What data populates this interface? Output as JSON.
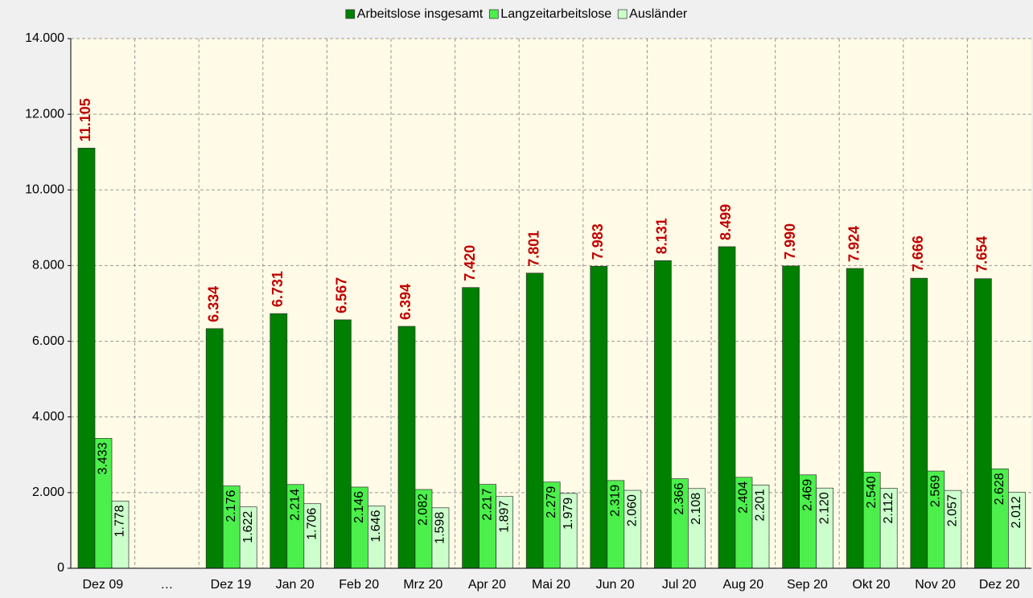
{
  "chart_data": {
    "type": "bar",
    "categories": [
      "Dez 09",
      "…",
      "Dez 19",
      "Jan 20",
      "Feb 20",
      "Mrz 20",
      "Apr 20",
      "Mai 20",
      "Jun 20",
      "Jul 20",
      "Aug 20",
      "Sep 20",
      "Okt 20",
      "Nov 20",
      "Dez 20"
    ],
    "series": [
      {
        "name": "Arbeitslose insgesamt",
        "color": "#008000",
        "values": [
          11105,
          null,
          6334,
          6731,
          6567,
          6394,
          7420,
          7801,
          7983,
          8131,
          8499,
          7990,
          7924,
          7666,
          7654
        ],
        "value_labels": [
          "11.105",
          null,
          "6.334",
          "6.731",
          "6.567",
          "6.394",
          "7.420",
          "7.801",
          "7.983",
          "8.131",
          "8.499",
          "7.990",
          "7.924",
          "7.666",
          "7.654"
        ]
      },
      {
        "name": "Langzeitarbeitslose",
        "color": "#4cef4c",
        "values": [
          3433,
          null,
          2176,
          2214,
          2146,
          2082,
          2217,
          2279,
          2319,
          2366,
          2404,
          2469,
          2540,
          2569,
          2628
        ],
        "value_labels": [
          "3.433",
          null,
          "2.176",
          "2.214",
          "2.146",
          "2.082",
          "2.217",
          "2.279",
          "2.319",
          "2.366",
          "2.404",
          "2.469",
          "2.540",
          "2.569",
          "2.628"
        ]
      },
      {
        "name": "Ausländer",
        "color": "#ccffcc",
        "values": [
          1778,
          null,
          1622,
          1706,
          1646,
          1598,
          1897,
          1979,
          2060,
          2108,
          2201,
          2120,
          2112,
          2057,
          2012
        ],
        "value_labels": [
          "1.778",
          null,
          "1.622",
          "1.706",
          "1.646",
          "1.598",
          "1.897",
          "1.979",
          "2.060",
          "2.108",
          "2.201",
          "2.120",
          "2.112",
          "2.057",
          "2.012"
        ]
      }
    ],
    "ylim": [
      0,
      14000
    ],
    "yticks": [
      0,
      {
        "value": 2000,
        "label": "2.000"
      },
      {
        "value": 4000,
        "label": "4.000"
      },
      {
        "value": 6000,
        "label": "6.000"
      },
      {
        "value": 8000,
        "label": "8.000"
      },
      {
        "value": 10000,
        "label": "10.000"
      },
      {
        "value": 12000,
        "label": "12.000"
      },
      {
        "value": 14000,
        "label": "14.000"
      }
    ],
    "grid": true
  }
}
